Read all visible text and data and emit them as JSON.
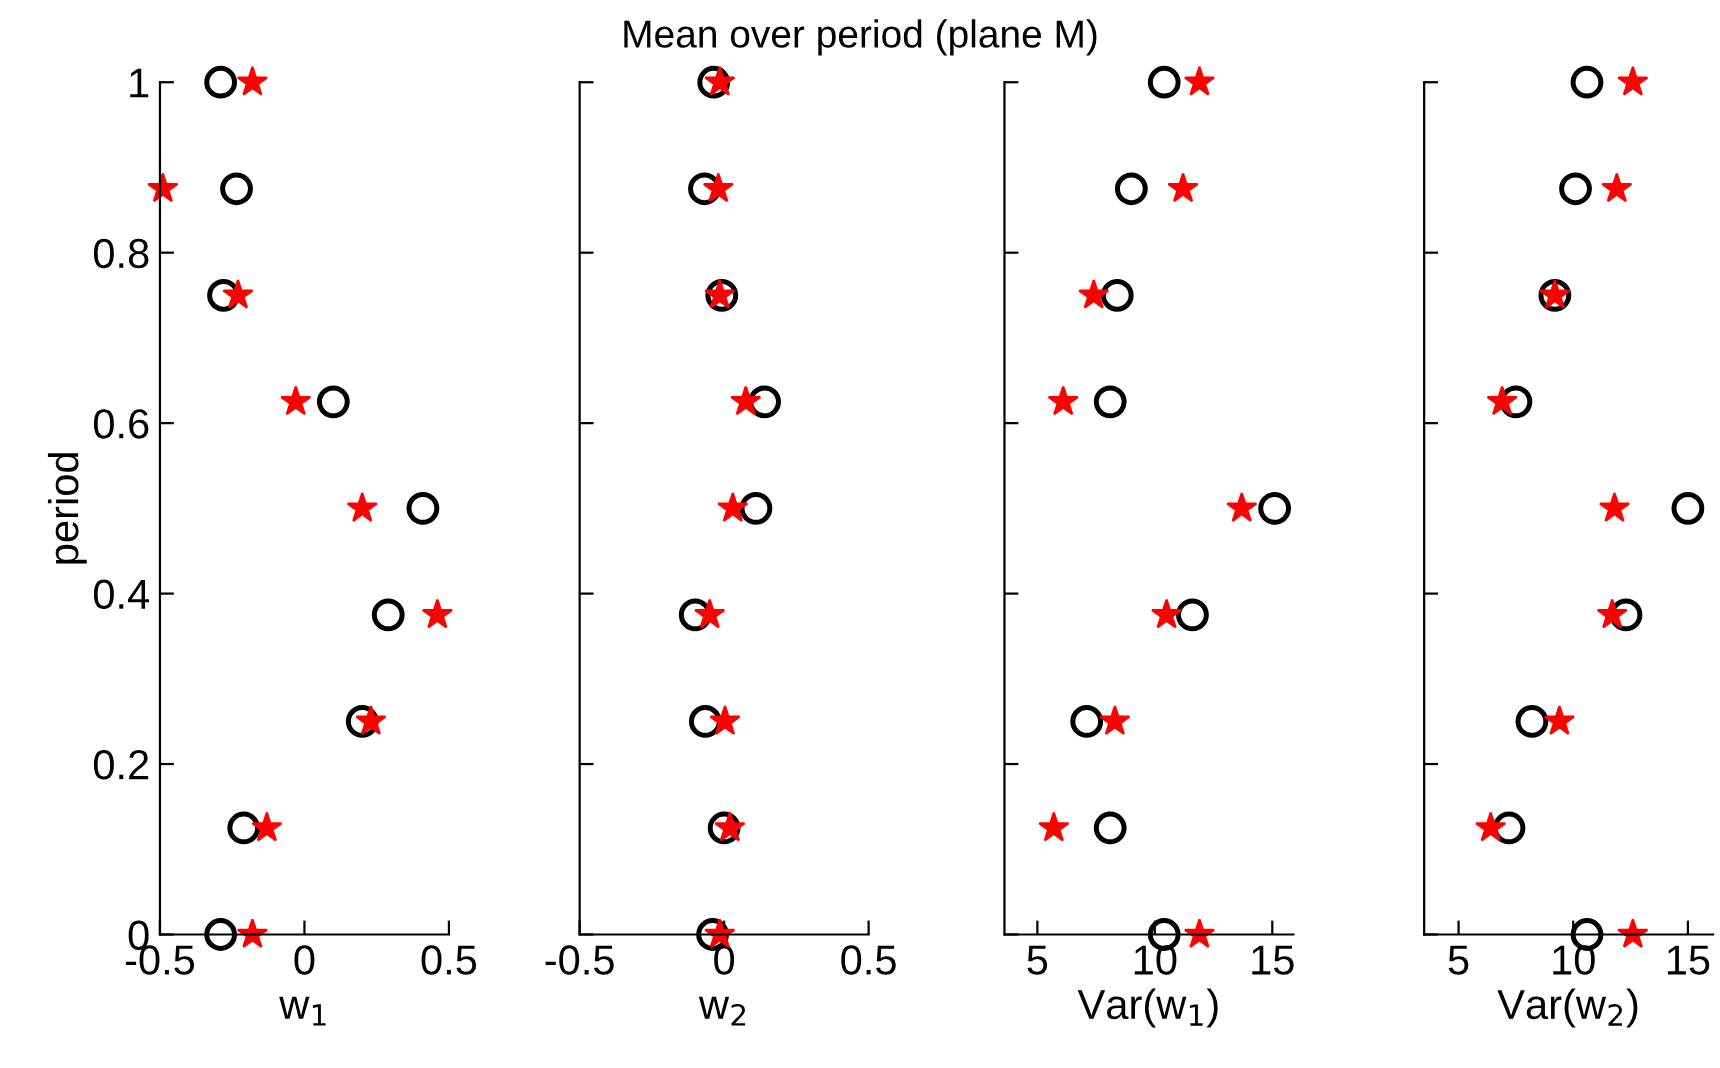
{
  "chart_data": [
    {
      "type": "scatter",
      "orientation": "horizontal",
      "ylabel": "period",
      "xlabel": "w$_{1}$",
      "x": [
        1,
        0.875,
        0.75,
        0.625,
        0.5,
        0.375,
        0.25,
        0.125,
        0
      ],
      "xlim": [
        -0.5,
        0.5
      ],
      "xticks": [
        -0.5,
        0,
        0.5
      ],
      "ylim": [
        0,
        1
      ],
      "yticks": [
        0,
        0.2,
        0.4,
        0.6,
        0.8,
        1
      ],
      "grid": false,
      "legend": false,
      "series": [
        {
          "color": "#000000",
          "marker": "circle",
          "values": [
            -0.29,
            -0.235,
            -0.28,
            0.1,
            0.41,
            0.29,
            0.2,
            -0.21,
            -0.29
          ]
        },
        {
          "color": "#ff0000",
          "marker": "star",
          "values": [
            -0.18,
            -0.49,
            -0.23,
            -0.03,
            0.2,
            0.46,
            0.23,
            -0.13,
            -0.18
          ]
        }
      ]
    },
    {
      "type": "scatter",
      "orientation": "horizontal",
      "title": "Mean over period (plane M)",
      "xlabel": "w$_{2}$",
      "x": [
        1,
        0.875,
        0.75,
        0.625,
        0.5,
        0.375,
        0.25,
        0.125,
        0
      ],
      "xlim": [
        -0.5,
        0.5
      ],
      "xticks": [
        -0.5,
        0,
        0.5
      ],
      "ylim": [
        0,
        1
      ],
      "yticks": [
        0,
        0.2,
        0.4,
        0.6,
        0.8,
        1
      ],
      "tick_labels": "x",
      "grid": false,
      "legend": false,
      "series": [
        {
          "color": "#000000",
          "marker": "circle",
          "values": [
            -0.036,
            -0.068,
            -0.008,
            0.14,
            0.11,
            -0.1,
            -0.065,
            0.0,
            -0.04
          ]
        },
        {
          "color": "#ff0000",
          "marker": "star",
          "values": [
            -0.015,
            -0.02,
            -0.015,
            0.075,
            0.03,
            -0.05,
            0.003,
            0.02,
            -0.015
          ]
        }
      ]
    },
    {
      "type": "scatter",
      "orientation": "horizontal",
      "xlabel": "Var(w$_{1}$)",
      "x": [
        1,
        0.875,
        0.75,
        0.625,
        0.5,
        0.375,
        0.25,
        0.125,
        0
      ],
      "xlim": [
        3.6,
        15.9
      ],
      "xticks": [
        5,
        10,
        15
      ],
      "ylim": [
        0,
        1
      ],
      "yticks": [
        0,
        0.2,
        0.4,
        0.6,
        0.8,
        1
      ],
      "tick_labels": "x",
      "grid": false,
      "legend": false,
      "series": [
        {
          "color": "#000000",
          "marker": "circle",
          "values": [
            10.4,
            9.0,
            8.4,
            8.1,
            15.1,
            11.6,
            7.1,
            8.1,
            10.4
          ]
        },
        {
          "color": "#ff0000",
          "marker": "star",
          "values": [
            11.9,
            11.2,
            7.4,
            6.1,
            13.7,
            10.5,
            8.3,
            5.7,
            11.9
          ]
        }
      ]
    },
    {
      "type": "scatter",
      "orientation": "horizontal",
      "xlabel": "Var(w$_{2}$)",
      "x": [
        1,
        0.875,
        0.75,
        0.625,
        0.5,
        0.375,
        0.25,
        0.125,
        0
      ],
      "xlim": [
        3.5,
        16.1
      ],
      "xticks": [
        5,
        10,
        15
      ],
      "ylim": [
        0,
        1
      ],
      "yticks": [
        0,
        0.2,
        0.4,
        0.6,
        0.8,
        1
      ],
      "tick_labels": "x",
      "grid": false,
      "legend": false,
      "series": [
        {
          "color": "#000000",
          "marker": "circle",
          "values": [
            10.6,
            10.1,
            9.2,
            7.5,
            15.0,
            12.3,
            8.2,
            7.2,
            10.6
          ]
        },
        {
          "color": "#ff0000",
          "marker": "star",
          "values": [
            12.6,
            11.9,
            9.2,
            6.9,
            11.8,
            11.7,
            9.4,
            6.4,
            12.6
          ]
        }
      ]
    }
  ]
}
